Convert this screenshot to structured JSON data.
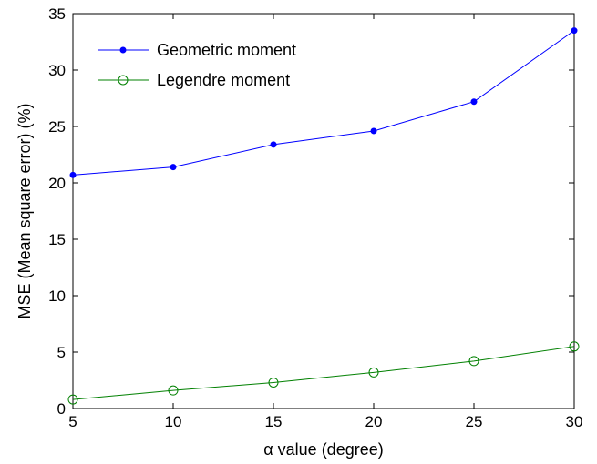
{
  "chart_data": {
    "type": "line",
    "xlabel": "α value (degree)",
    "ylabel": "MSE (Mean square error) (%)",
    "xlim": [
      5,
      30
    ],
    "ylim": [
      0,
      35
    ],
    "x_ticks": [
      5,
      10,
      15,
      20,
      25,
      30
    ],
    "y_ticks": [
      0,
      5,
      10,
      15,
      20,
      25,
      30,
      35
    ],
    "grid": false,
    "legend_position": "top-left",
    "x": [
      5,
      10,
      15,
      20,
      25,
      30
    ],
    "series": [
      {
        "name": "Geometric moment",
        "values": [
          20.7,
          21.4,
          23.4,
          24.6,
          27.2,
          33.5
        ],
        "color": "#0000ff",
        "marker": "filled-dot"
      },
      {
        "name": "Legendre moment",
        "values": [
          0.8,
          1.6,
          2.3,
          3.2,
          4.2,
          5.5
        ],
        "color": "#008000",
        "marker": "open-circle"
      }
    ]
  }
}
